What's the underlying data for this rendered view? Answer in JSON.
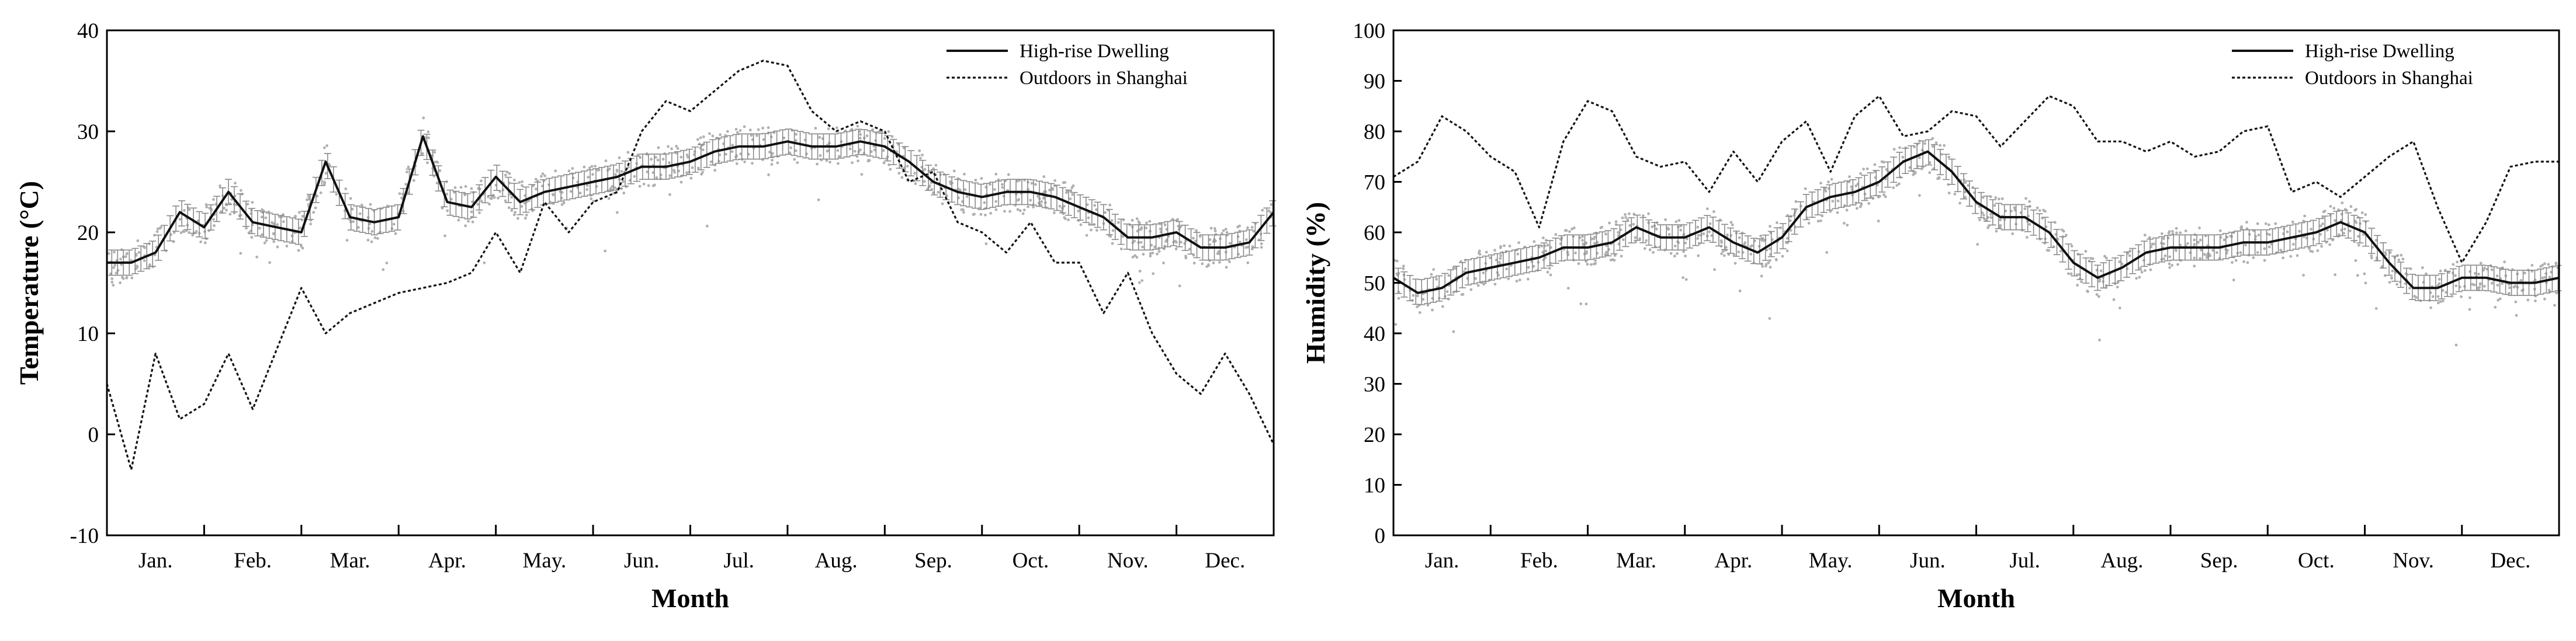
{
  "chart_data": [
    {
      "type": "line",
      "id": "temperature",
      "xlabel": "Month",
      "ylabel": "Temperature (°C)",
      "ylim": [
        -10,
        40
      ],
      "yticks": [
        -10,
        0,
        10,
        20,
        30,
        40
      ],
      "categories": [
        "Jan.",
        "Feb.",
        "Mar.",
        "Apr.",
        "May.",
        "Jun.",
        "Jul.",
        "Aug.",
        "Sep.",
        "Oct.",
        "Nov.",
        "Dec."
      ],
      "legend_position": "top-right",
      "series": [
        {
          "name": "High-rise Dwelling",
          "style": "solid",
          "error_bars": true,
          "x": [
            0,
            0.25,
            0.5,
            0.75,
            1.0,
            1.25,
            1.5,
            1.75,
            2.0,
            2.25,
            2.5,
            2.75,
            3.0,
            3.25,
            3.5,
            3.75,
            4.0,
            4.25,
            4.5,
            4.75,
            5.0,
            5.25,
            5.5,
            5.75,
            6.0,
            6.25,
            6.5,
            6.75,
            7.0,
            7.25,
            7.5,
            7.75,
            8.0,
            8.25,
            8.5,
            8.75,
            9.0,
            9.25,
            9.5,
            9.75,
            10.0,
            10.25,
            10.5,
            10.75,
            11.0,
            11.25,
            11.5,
            11.75,
            12.0
          ],
          "values": [
            17,
            17,
            18,
            22,
            20.5,
            24,
            21,
            20.5,
            20,
            27,
            21.5,
            21,
            21.5,
            29.5,
            23,
            22.5,
            25.5,
            23,
            24,
            24.5,
            25,
            25.5,
            26.5,
            26.5,
            27,
            28,
            28.5,
            28.5,
            29,
            28.5,
            28.5,
            29,
            28.5,
            27,
            25,
            24,
            23.5,
            24,
            24,
            23.5,
            22.5,
            21.5,
            19.5,
            19.5,
            20,
            18.5,
            18.5,
            19,
            22
          ]
        },
        {
          "name": "Outdoors in Shanghai",
          "style": "dotted",
          "x": [
            0,
            0.25,
            0.5,
            0.75,
            1.0,
            1.25,
            1.5,
            1.75,
            2.0,
            2.25,
            2.5,
            2.75,
            3.0,
            3.25,
            3.5,
            3.75,
            4.0,
            4.25,
            4.5,
            4.75,
            5.0,
            5.25,
            5.5,
            5.75,
            6.0,
            6.25,
            6.5,
            6.75,
            7.0,
            7.25,
            7.5,
            7.75,
            8.0,
            8.25,
            8.5,
            8.75,
            9.0,
            9.25,
            9.5,
            9.75,
            10.0,
            10.25,
            10.5,
            10.75,
            11.0,
            11.25,
            11.5,
            11.75,
            12.0
          ],
          "values": [
            5,
            -3.5,
            8,
            1.5,
            3,
            8,
            2.5,
            8.5,
            14.5,
            10,
            12,
            13,
            14,
            14.5,
            15,
            16,
            20,
            16,
            23,
            20,
            23,
            24,
            30,
            33,
            32,
            34,
            36,
            37,
            36.5,
            32,
            30,
            31,
            30,
            25,
            26,
            21,
            20,
            18,
            21,
            17,
            17,
            12,
            16,
            10,
            6,
            4,
            8,
            4,
            -1
          ]
        }
      ]
    },
    {
      "type": "line",
      "id": "humidity",
      "xlabel": "Month",
      "ylabel": "Humidity (%)",
      "ylim": [
        0,
        100
      ],
      "yticks": [
        0,
        10,
        20,
        30,
        40,
        50,
        60,
        70,
        80,
        90,
        100
      ],
      "categories": [
        "Jan.",
        "Feb.",
        "Mar.",
        "Apr.",
        "May.",
        "Jun.",
        "Jul.",
        "Aug.",
        "Sep.",
        "Oct.",
        "Nov.",
        "Dec."
      ],
      "legend_position": "top-right",
      "series": [
        {
          "name": "High-rise Dwelling",
          "style": "solid",
          "error_bars": true,
          "x": [
            0,
            0.25,
            0.5,
            0.75,
            1.0,
            1.25,
            1.5,
            1.75,
            2.0,
            2.25,
            2.5,
            2.75,
            3.0,
            3.25,
            3.5,
            3.75,
            4.0,
            4.25,
            4.5,
            4.75,
            5.0,
            5.25,
            5.5,
            5.75,
            6.0,
            6.25,
            6.5,
            6.75,
            7.0,
            7.25,
            7.5,
            7.75,
            8.0,
            8.25,
            8.5,
            8.75,
            9.0,
            9.25,
            9.5,
            9.75,
            10.0,
            10.25,
            10.5,
            10.75,
            11.0,
            11.25,
            11.5,
            11.75,
            12.0
          ],
          "values": [
            51,
            48,
            49,
            52,
            53,
            54,
            55,
            57,
            57,
            58,
            61,
            59,
            59,
            61,
            58,
            56,
            59,
            65,
            67,
            68,
            70,
            74,
            76,
            72,
            66,
            63,
            63,
            60,
            54,
            51,
            53,
            56,
            57,
            57,
            57,
            58,
            58,
            59,
            60,
            62,
            60,
            54,
            49,
            49,
            51,
            51,
            50,
            50,
            51
          ]
        },
        {
          "name": "Outdoors in Shanghai",
          "style": "dotted",
          "x": [
            0,
            0.25,
            0.5,
            0.75,
            1.0,
            1.25,
            1.5,
            1.75,
            2.0,
            2.25,
            2.5,
            2.75,
            3.0,
            3.25,
            3.5,
            3.75,
            4.0,
            4.25,
            4.5,
            4.75,
            5.0,
            5.25,
            5.5,
            5.75,
            6.0,
            6.25,
            6.5,
            6.75,
            7.0,
            7.25,
            7.5,
            7.75,
            8.0,
            8.25,
            8.5,
            8.75,
            9.0,
            9.25,
            9.5,
            9.75,
            10.0,
            10.25,
            10.5,
            10.75,
            11.0,
            11.25,
            11.5,
            11.75,
            12.0
          ],
          "values": [
            71,
            74,
            83,
            80,
            75,
            72,
            61,
            78,
            86,
            84,
            75,
            73,
            74,
            68,
            76,
            70,
            78,
            82,
            72,
            83,
            87,
            79,
            80,
            84,
            83,
            77,
            82,
            87,
            85,
            78,
            78,
            76,
            78,
            75,
            76,
            80,
            81,
            68,
            70,
            67,
            71,
            75,
            78,
            65,
            54,
            62,
            73,
            74,
            74
          ]
        }
      ]
    }
  ]
}
